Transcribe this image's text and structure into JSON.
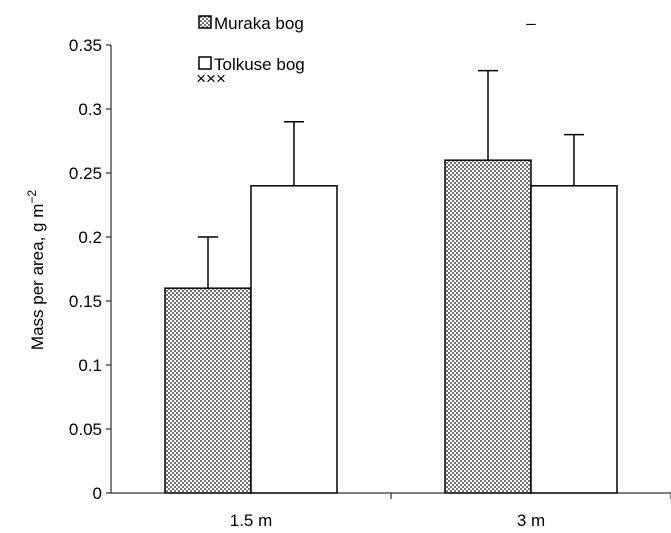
{
  "chart_data": {
    "type": "bar",
    "categories": [
      "1.5 m",
      "3 m"
    ],
    "series": [
      {
        "name": "Muraka bog",
        "values": [
          0.16,
          0.26
        ],
        "errors": [
          0.04,
          0.07
        ],
        "fill": "dotted"
      },
      {
        "name": "Tolkuse bog",
        "values": [
          0.24,
          0.24
        ],
        "errors": [
          0.05,
          0.04
        ],
        "fill": "#ffffff"
      }
    ],
    "annotations": [
      {
        "category": 0,
        "text": "×××"
      },
      {
        "category": 1,
        "text": "–"
      }
    ],
    "title": "",
    "xlabel": "",
    "ylabel": "Mass per area, g m",
    "ylabel_superscript": "−2",
    "ylim": [
      0,
      0.35
    ],
    "yticks": [
      "0",
      "0.05",
      "0.1",
      "0.15",
      "0.2",
      "0.25",
      "0.3",
      "0.35"
    ],
    "legend_placement": "top-left",
    "grid": false
  }
}
